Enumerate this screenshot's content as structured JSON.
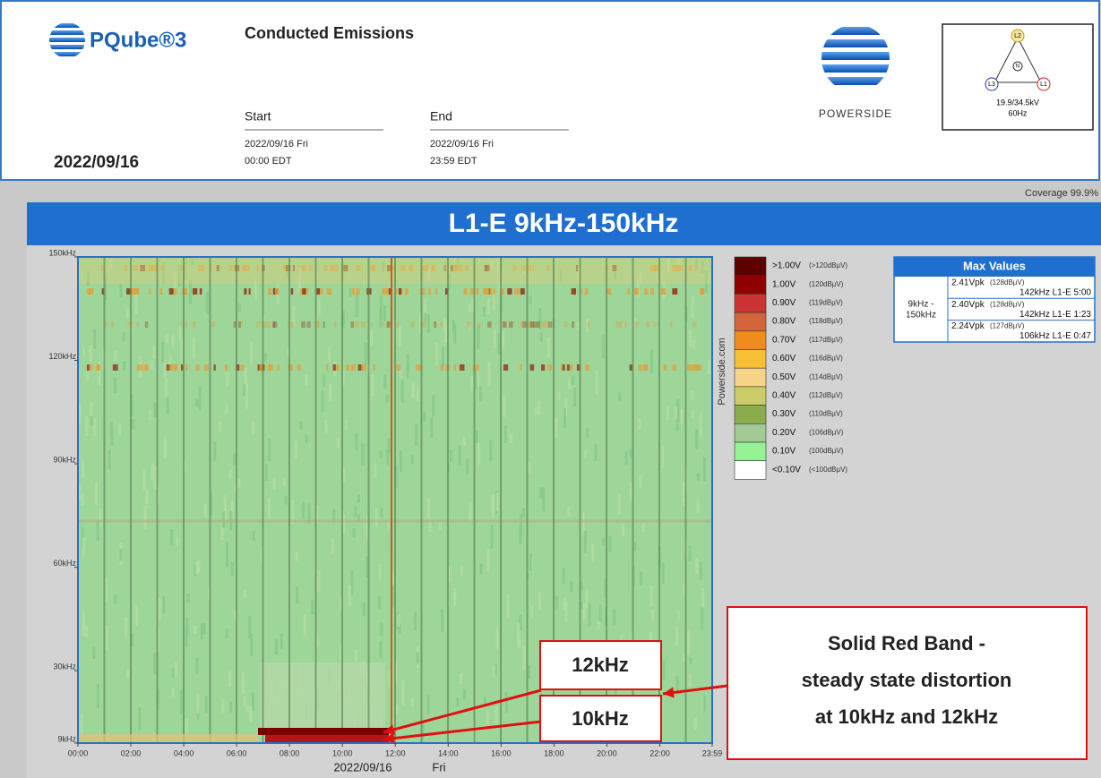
{
  "header": {
    "logo": "PQube®3",
    "title": "Conducted Emissions",
    "date": "2022/09/16",
    "start_label": "Start",
    "start_date": "2022/09/16 Fri",
    "start_time": "00:00 EDT",
    "end_label": "End",
    "end_date": "2022/09/16 Fri",
    "end_time": "23:59 EDT",
    "brand": "POWERSIDE",
    "diagram": {
      "nodes": [
        "L2",
        "N",
        "L3",
        "L1"
      ],
      "voltage": "19.9/34.5kV",
      "frequency": "60Hz"
    }
  },
  "coverage": "Coverage 99.9%",
  "chart_data": {
    "type": "heatmap",
    "title": "L1-E 9kHz-150kHz",
    "side_text": "Powerside.com",
    "xlim": [
      0,
      23.983
    ],
    "xticks": [
      {
        "value": 0,
        "label": "00:00"
      },
      {
        "value": 2,
        "label": "02:00"
      },
      {
        "value": 4,
        "label": "04:00"
      },
      {
        "value": 6,
        "label": "06:00"
      },
      {
        "value": 8,
        "label": "08:00"
      },
      {
        "value": 10,
        "label": "10:00"
      },
      {
        "value": 12,
        "label": "12:00"
      },
      {
        "value": 14,
        "label": "14:00"
      },
      {
        "value": 16,
        "label": "16:00"
      },
      {
        "value": 18,
        "label": "18:00"
      },
      {
        "value": 20,
        "label": "20:00"
      },
      {
        "value": 22,
        "label": "22:00"
      },
      {
        "value": 23.983,
        "label": "23:59"
      }
    ],
    "x_label": [
      "2022/09/16",
      "Fri"
    ],
    "ylim": [
      9,
      150
    ],
    "yticks": [
      {
        "value": 9,
        "label": "9kHz"
      },
      {
        "value": 30,
        "label": "30kHz"
      },
      {
        "value": 60,
        "label": "60kHz"
      },
      {
        "value": 90,
        "label": "90kHz"
      },
      {
        "value": 120,
        "label": "120kHz"
      },
      {
        "value": 150,
        "label": "150kHz"
      }
    ],
    "legend": [
      {
        "color": "#5e0000",
        "label": ">1.00V",
        "sub": "(>120dBµV)"
      },
      {
        "color": "#8f0000",
        "label": "1.00V",
        "sub": "(120dBµV)"
      },
      {
        "color": "#cc3333",
        "label": "0.90V",
        "sub": "(119dBµV)"
      },
      {
        "color": "#d2663a",
        "label": "0.80V",
        "sub": "(118dBµV)"
      },
      {
        "color": "#f08c1e",
        "label": "0.70V",
        "sub": "(117dBµV)"
      },
      {
        "color": "#f7c034",
        "label": "0.60V",
        "sub": "(116dBµV)"
      },
      {
        "color": "#f6d488",
        "label": "0.50V",
        "sub": "(114dBµV)"
      },
      {
        "color": "#cccc66",
        "label": "0.40V",
        "sub": "(112dBµV)"
      },
      {
        "color": "#8cad4e",
        "label": "0.30V",
        "sub": "(110dBµV)"
      },
      {
        "color": "#a3c995",
        "label": "0.20V",
        "sub": "(106dBµV)"
      },
      {
        "color": "#94f294",
        "label": "0.10V",
        "sub": "(100dBµV)"
      },
      {
        "color": "#ffffff",
        "label": "<0.10V",
        "sub": "(<100dBµV)"
      }
    ],
    "max_values": {
      "title": "Max Values",
      "range": [
        "9kHz -",
        "150kHz"
      ],
      "rows": [
        [
          "2.41Vpk",
          "(128dBµV)",
          "142kHz  L1-E  5:00"
        ],
        [
          "2.40Vpk",
          "(128dBµV)",
          "142kHz  L1-E  1:23"
        ],
        [
          "2.24Vpk",
          "(127dBµV)",
          "106kHz  L1-E  0:47"
        ]
      ]
    },
    "annotations": {
      "label_12": "12kHz",
      "label_10": "10kHz",
      "note": [
        "Solid Red Band -",
        "steady state distortion",
        "at 10kHz and 12kHz"
      ]
    }
  }
}
